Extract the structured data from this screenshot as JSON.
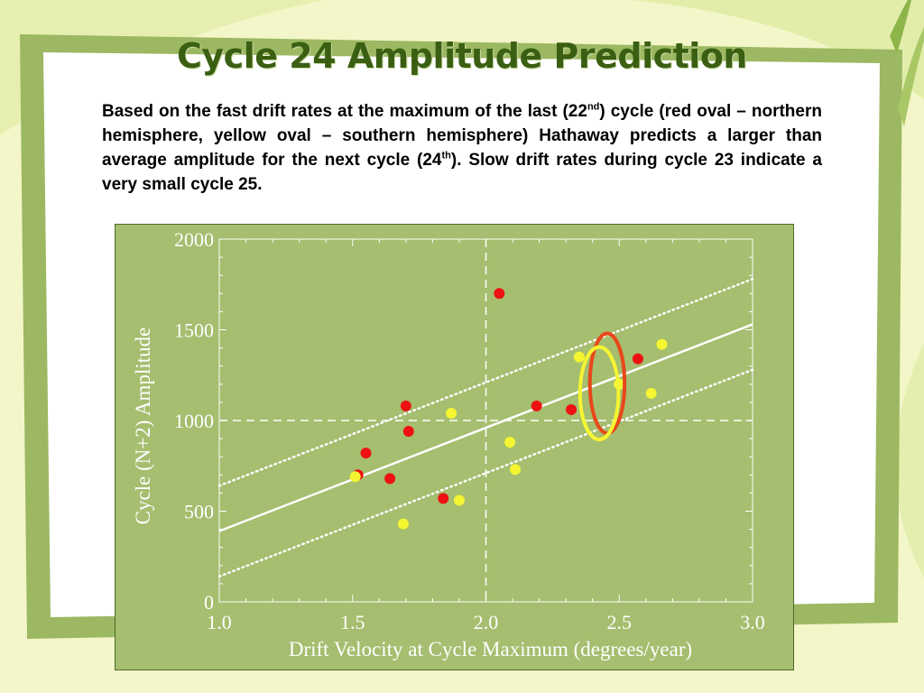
{
  "slide": {
    "title": "Cycle 24 Amplitude Prediction",
    "text_part1": "Based on the fast drift rates at the maximum of the last (22",
    "sup1": "nd",
    "text_part2": ") cycle (red oval – northern hemisphere, yellow oval – southern hemisphere) Hathaway predicts a larger than average amplitude for the next cycle (24",
    "sup2": "th",
    "text_part3": "). Slow drift rates during cycle 23 indicate a very small cycle 25."
  },
  "colors": {
    "title": "#3a5f12",
    "frame": "#9cb862",
    "plot_bg": "#a5be6f",
    "red": "#ee1111",
    "yellow": "#f5f531",
    "red_oval": "#e8471a"
  },
  "chart_data": {
    "type": "scatter",
    "xlabel": "Drift Velocity at Cycle Maximum (degrees/year)",
    "ylabel": "Cycle (N+2) Amplitude",
    "xlim": [
      1.0,
      3.0
    ],
    "ylim": [
      0,
      2000
    ],
    "xticks": [
      "1.0",
      "1.5",
      "2.0",
      "2.5",
      "3.0"
    ],
    "yticks": [
      "0",
      "500",
      "1000",
      "1500",
      "2000"
    ],
    "reference_lines": {
      "x": 2.0,
      "y": 1000
    },
    "fit_line": {
      "from": [
        1.0,
        390
      ],
      "to": [
        3.0,
        1530
      ]
    },
    "confidence_band": [
      {
        "from": [
          1.0,
          640
        ],
        "to": [
          3.0,
          1780
        ]
      },
      {
        "from": [
          1.0,
          140
        ],
        "to": [
          3.0,
          1280
        ]
      }
    ],
    "series": [
      {
        "color": "red",
        "points": [
          [
            1.52,
            700
          ],
          [
            1.55,
            820
          ],
          [
            1.64,
            680
          ],
          [
            1.7,
            1080
          ],
          [
            1.71,
            940
          ],
          [
            1.84,
            570
          ],
          [
            2.05,
            1700
          ],
          [
            2.19,
            1080
          ],
          [
            2.32,
            1060
          ],
          [
            2.57,
            1340
          ]
        ]
      },
      {
        "color": "yellow",
        "points": [
          [
            1.51,
            690
          ],
          [
            1.69,
            430
          ],
          [
            1.87,
            1040
          ],
          [
            1.9,
            560
          ],
          [
            2.09,
            880
          ],
          [
            2.11,
            730
          ],
          [
            2.35,
            1350
          ],
          [
            2.5,
            1200
          ],
          [
            2.62,
            1150
          ],
          [
            2.66,
            1420
          ]
        ]
      }
    ],
    "ovals": [
      {
        "color": "red",
        "cx": 2.455,
        "cy": 1205,
        "rx": 0.065,
        "ry": 275
      },
      {
        "color": "yellow",
        "cx": 2.425,
        "cy": 1150,
        "rx": 0.072,
        "ry": 255
      }
    ]
  }
}
